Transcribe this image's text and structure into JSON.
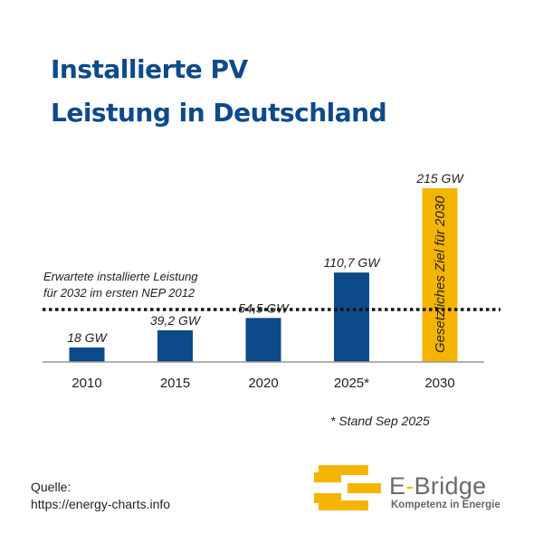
{
  "title": {
    "line1": "Installierte PV",
    "line2": "Leistung in Deutschland"
  },
  "chart_data": {
    "type": "bar",
    "title": "Installierte PV Leistung in Deutschland",
    "xlabel": "",
    "ylabel": "",
    "unit": "GW",
    "ylim": [
      0,
      215
    ],
    "categories": [
      "2010",
      "2015",
      "2020",
      "2025*",
      "2030"
    ],
    "values": [
      18,
      39.2,
      54.5,
      110.7,
      215
    ],
    "value_labels": [
      "18 GW",
      "39,2 GW",
      "54,5 GW",
      "110,7 GW",
      "215 GW"
    ],
    "bar_colors": [
      "#0d4a8a",
      "#0d4a8a",
      "#0d4a8a",
      "#0d4a8a",
      "#f5b400"
    ],
    "bar_inner_label": {
      "index": 4,
      "text": "Gesetzliches Ziel für 2030"
    },
    "reference_line": {
      "value": 65,
      "label_line1": "Erwartete installierte Leistung",
      "label_line2": "für 2032 im ersten NEP 2012",
      "style": "dotted"
    },
    "footnote": "* Stand Sep 2025",
    "grid": false
  },
  "source": {
    "label": "Quelle:",
    "url": "https://energy-charts.info"
  },
  "logo": {
    "name_prefix": "E",
    "name_dash": "-",
    "name_suffix": "Bridge",
    "tagline": "Kompetenz in Energie"
  }
}
